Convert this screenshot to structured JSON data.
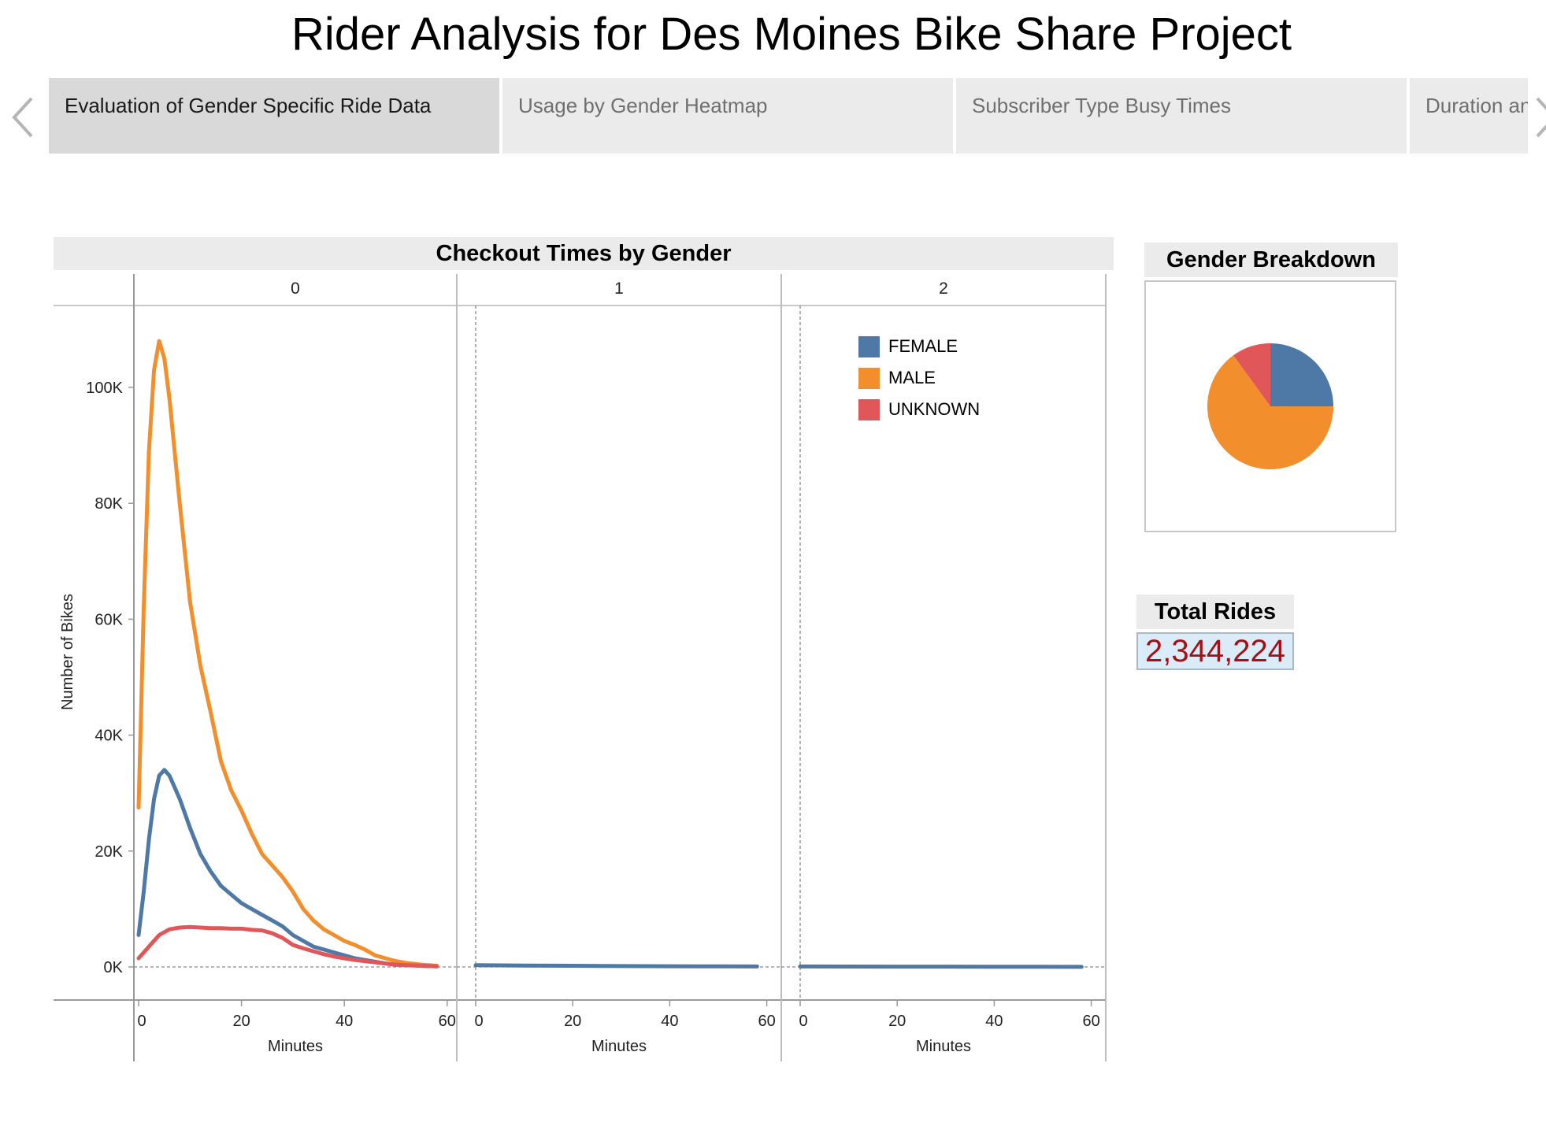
{
  "title": "Rider Analysis for Des Moines Bike Share Project",
  "tabs": [
    {
      "label": "Evaluation of Gender Specific Ride Data",
      "active": true
    },
    {
      "label": "Usage by Gender Heatmap",
      "active": false
    },
    {
      "label": "Subscriber Type Busy Times",
      "active": false
    },
    {
      "label": "Duration an",
      "active": false
    }
  ],
  "icons": {
    "prev": "chevron-left-icon",
    "next": "chevron-right-icon"
  },
  "colors": {
    "female": "#4e79a7",
    "male": "#f28e2b",
    "unknown": "#e15759",
    "total_value": "#a50f15"
  },
  "gender_breakdown": {
    "title": "Gender Breakdown",
    "slices": [
      {
        "label": "FEMALE",
        "share": 0.25
      },
      {
        "label": "MALE",
        "share": 0.65
      },
      {
        "label": "UNKNOWN",
        "share": 0.1
      }
    ]
  },
  "total_rides": {
    "title": "Total Rides",
    "value": "2,344,224"
  },
  "chart_data": {
    "type": "line",
    "title": "Checkout Times by Gender",
    "ylabel": "Number of Bikes",
    "xlabel": "Minutes",
    "ylim": [
      0,
      110000
    ],
    "xlim": [
      0,
      60
    ],
    "yticks": [
      "0K",
      "20K",
      "40K",
      "60K",
      "80K",
      "100K"
    ],
    "ytick_values": [
      0,
      20000,
      40000,
      60000,
      80000,
      100000
    ],
    "xticks": [
      "0",
      "20",
      "40",
      "60"
    ],
    "xtick_values": [
      0,
      20,
      40,
      60
    ],
    "legend": {
      "entries": [
        "FEMALE",
        "MALE",
        "UNKNOWN"
      ],
      "placement": "top-right"
    },
    "panels": [
      {
        "header": "0",
        "series": [
          {
            "name": "MALE",
            "x": [
              0,
              1,
              2,
              3,
              4,
              5,
              6,
              8,
              10,
              12,
              14,
              16,
              18,
              20,
              22,
              24,
              26,
              28,
              30,
              32,
              34,
              36,
              38,
              40,
              42,
              44,
              46,
              48,
              50,
              52,
              55,
              58
            ],
            "y": [
              27500,
              62000,
              89000,
              103000,
              108000,
              105000,
              98000,
              80000,
              63000,
              52000,
              44000,
              35500,
              30500,
              27000,
              23000,
              19500,
              17500,
              15500,
              13000,
              10000,
              8000,
              6500,
              5500,
              4500,
              3800,
              3000,
              2000,
              1500,
              1000,
              700,
              400,
              200
            ]
          },
          {
            "name": "FEMALE",
            "x": [
              0,
              1,
              2,
              3,
              4,
              5,
              6,
              7,
              8,
              10,
              12,
              14,
              16,
              18,
              20,
              22,
              24,
              26,
              28,
              30,
              32,
              34,
              36,
              38,
              40,
              42,
              44,
              46,
              48,
              50,
              52,
              55,
              58
            ],
            "y": [
              5500,
              13000,
              22000,
              29000,
              33000,
              34000,
              33000,
              31000,
              29000,
              24000,
              19500,
              16500,
              14000,
              12500,
              11000,
              10000,
              9000,
              8000,
              7000,
              5500,
              4500,
              3500,
              3000,
              2500,
              2000,
              1500,
              1200,
              900,
              600,
              400,
              300,
              200,
              100
            ]
          },
          {
            "name": "UNKNOWN",
            "x": [
              0,
              1,
              2,
              4,
              6,
              8,
              10,
              12,
              14,
              16,
              18,
              20,
              22,
              24,
              26,
              28,
              30,
              32,
              34,
              36,
              38,
              40,
              42,
              44,
              46,
              48,
              50,
              52,
              55,
              58
            ],
            "y": [
              1500,
              2500,
              3500,
              5500,
              6500,
              6800,
              6900,
              6800,
              6700,
              6700,
              6600,
              6600,
              6400,
              6300,
              5800,
              5000,
              3800,
              3200,
              2700,
              2200,
              1800,
              1500,
              1200,
              1000,
              800,
              600,
              400,
              300,
              200,
              100
            ]
          }
        ]
      },
      {
        "header": "1",
        "series": [
          {
            "name": "FEMALE",
            "x": [
              0,
              10,
              20,
              30,
              40,
              50,
              58
            ],
            "y": [
              300,
              250,
              200,
              150,
              120,
              100,
              80
            ]
          }
        ]
      },
      {
        "header": "2",
        "series": [
          {
            "name": "FEMALE",
            "x": [
              0,
              10,
              20,
              30,
              40,
              50,
              58
            ],
            "y": [
              80,
              70,
              60,
              50,
              40,
              30,
              20
            ]
          }
        ]
      }
    ]
  }
}
